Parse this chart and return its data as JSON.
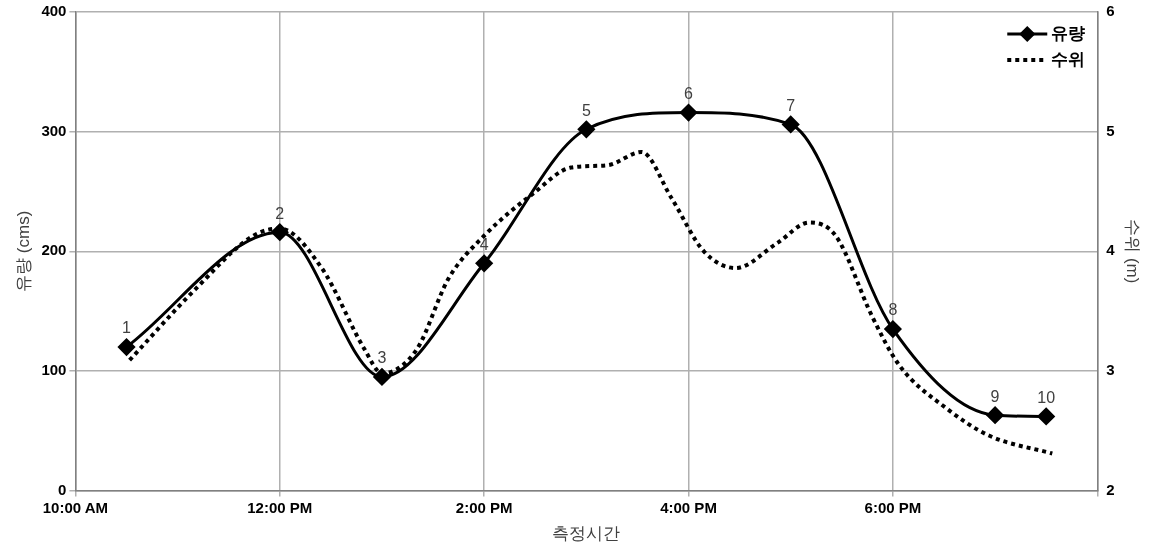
{
  "chart_data": {
    "type": "line",
    "xlabel": "측정시간",
    "ylabel": "유량 (cms)",
    "y2label": "수위 (m)",
    "xlim": [
      10,
      20
    ],
    "xticks": [
      {
        "value": 10,
        "label": "10:00 AM"
      },
      {
        "value": 12,
        "label": "12:00 PM"
      },
      {
        "value": 14,
        "label": "2:00 PM"
      },
      {
        "value": 16,
        "label": "4:00 PM"
      },
      {
        "value": 18,
        "label": "6:00 PM"
      },
      {
        "value": 20,
        "label": null
      }
    ],
    "ylim": [
      0,
      400
    ],
    "yticks": [
      0,
      100,
      200,
      300,
      400
    ],
    "y2lim": [
      2,
      6
    ],
    "y2ticks": [
      2,
      3,
      4,
      5,
      6
    ],
    "grid": true,
    "legend": "top right",
    "series": [
      {
        "name": "유량",
        "color": "#000000",
        "marker": "diamond",
        "line_style": "solid",
        "x": [
          10.5,
          12,
          13,
          14,
          15,
          16,
          17,
          18,
          19,
          19.5
        ],
        "values": [
          120,
          216,
          95,
          190,
          302,
          316,
          306,
          135,
          63,
          62
        ]
      },
      {
        "name": "수위",
        "color": "#000000",
        "marker": "none",
        "line_style": "dotted",
        "axis": "y2",
        "x": [
          10.53,
          11.17,
          11.74,
          12,
          12.41,
          12.83,
          13,
          13.34,
          13.65,
          14,
          14.49,
          14.85,
          15.21,
          15.54,
          15.83,
          16.15,
          16.46,
          16.87,
          17.18,
          17.44,
          17.8,
          18.06,
          18.52,
          18.94,
          19.56
        ],
        "values": [
          3.09,
          3.68,
          4.13,
          4.19,
          3.86,
          3.18,
          2.98,
          3.18,
          3.77,
          4.13,
          4.49,
          4.7,
          4.72,
          4.83,
          4.45,
          4,
          3.86,
          4.07,
          4.24,
          4.13,
          3.45,
          3.05,
          2.69,
          2.46,
          2.31
        ]
      }
    ],
    "annotations": [
      {
        "text": "1",
        "x": 10.5,
        "y": 120
      },
      {
        "text": "2",
        "x": 12,
        "y": 216
      },
      {
        "text": "3",
        "x": 13,
        "y": 95
      },
      {
        "text": "4",
        "x": 14,
        "y": 190
      },
      {
        "text": "5",
        "x": 15,
        "y": 302
      },
      {
        "text": "6",
        "x": 16,
        "y": 316
      },
      {
        "text": "7",
        "x": 17,
        "y": 306
      },
      {
        "text": "8",
        "x": 18,
        "y": 135
      },
      {
        "text": "9",
        "x": 19,
        "y": 63
      },
      {
        "text": "10",
        "x": 19.5,
        "y": 62
      }
    ]
  }
}
